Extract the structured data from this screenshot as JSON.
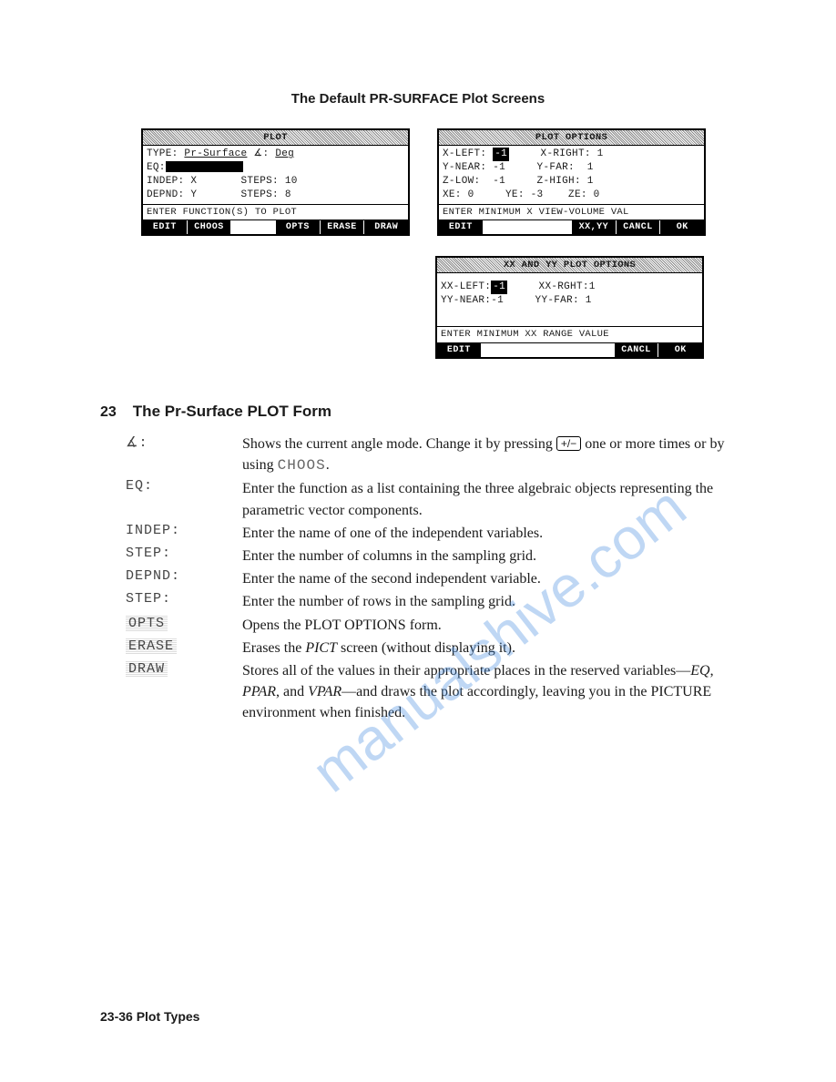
{
  "page_title": "The Default PR-SURFACE Plot Screens",
  "watermark": "manualshive.com",
  "screen1": {
    "title": "PLOT",
    "rows": [
      [
        "TYPE: ",
        "Pr-Surface",
        " ∡: ",
        "Deg"
      ],
      [
        "EQ:"
      ],
      [
        "INDEP: ",
        "X",
        "       STEPS: ",
        "10"
      ],
      [
        "DEPND: ",
        "Y",
        "       STEPS: ",
        "8"
      ]
    ],
    "hint": "ENTER FUNCTION(S) TO PLOT",
    "menu": [
      "EDIT",
      "CHOOS",
      "",
      "OPTS",
      "ERASE",
      "DRAW"
    ]
  },
  "screen2": {
    "title": "PLOT OPTIONS",
    "rows": [
      [
        "X-LEFT: ",
        "-1",
        "     X-RIGHT: ",
        "1"
      ],
      [
        "Y-NEAR: ",
        "-1",
        "     Y-FAR:  ",
        "1"
      ],
      [
        "Z-LOW:  ",
        "-1",
        "     Z-HIGH: ",
        "1"
      ],
      [
        "XE: ",
        "0",
        "     YE: ",
        "-3",
        "    ZE: ",
        "0"
      ]
    ],
    "hint": "ENTER MINIMUM X VIEW-VOLUME VAL",
    "menu": [
      "EDIT",
      "",
      "",
      "XX,YY",
      "CANCL",
      "OK"
    ]
  },
  "screen3": {
    "title": "XX AND YY PLOT OPTIONS",
    "rows": [
      [
        "XX-LEFT:",
        "-1",
        "     XX-RGHT:",
        "1"
      ],
      [
        "YY-NEAR:",
        "-1",
        "     YY-FAR: ",
        "1"
      ]
    ],
    "hint": "ENTER MINIMUM XX RANGE VALUE",
    "menu": [
      "EDIT",
      "",
      "",
      "",
      "CANCL",
      "OK"
    ]
  },
  "section": {
    "chapnum": "23",
    "title": "The Pr-Surface PLOT Form"
  },
  "defs": [
    {
      "term": "∡:",
      "desc_parts": [
        "Shows the current angle mode. Change it by pressing ",
        {
          "key": "+/−"
        },
        " one or more times or by using ",
        {
          "mono": "CHOOS"
        },
        "."
      ]
    },
    {
      "term": "EQ:",
      "desc_parts": [
        "Enter the function as a list containing the three algebraic objects representing the parametric vector components."
      ]
    },
    {
      "term": "INDEP:",
      "desc_parts": [
        "Enter the name of one of the independent variables."
      ]
    },
    {
      "term": "STEP:",
      "desc_parts": [
        "Enter the number of columns in the sampling grid."
      ]
    },
    {
      "term": "DEPND:",
      "desc_parts": [
        "Enter the name of the second independent variable."
      ]
    },
    {
      "term": "STEP:",
      "desc_parts": [
        "Enter the number of rows in the sampling grid."
      ]
    },
    {
      "term": "OPTS",
      "shaded": true,
      "desc_parts": [
        "Opens the PLOT OPTIONS form."
      ]
    },
    {
      "term": "ERASE",
      "shaded": true,
      "desc_parts": [
        "Erases the ",
        {
          "i": "PICT"
        },
        " screen (without displaying it)."
      ]
    },
    {
      "term": "DRAW",
      "shaded": true,
      "desc_parts": [
        "Stores all of the values in their appropriate places in the reserved variables—",
        {
          "i": "EQ"
        },
        ", ",
        {
          "i": "PPAR"
        },
        ", and ",
        {
          "i": "VPAR"
        },
        "—and draws the plot accordingly, leaving you in the PICTURE environment when finished."
      ]
    }
  ],
  "footer": "23-36   Plot Types"
}
